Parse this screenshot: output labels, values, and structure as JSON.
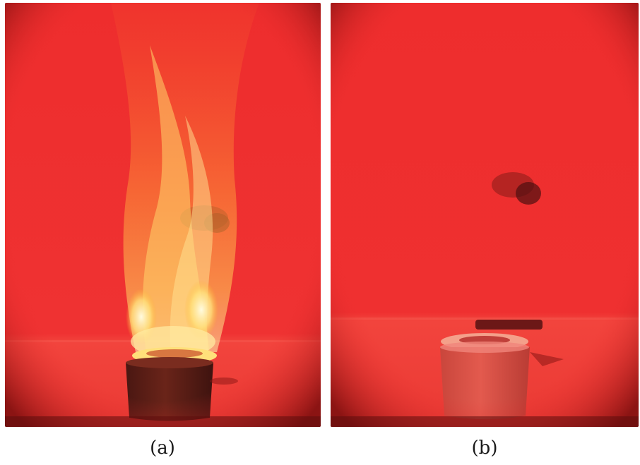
{
  "figure": {
    "panels": [
      {
        "id": "a",
        "caption": "(a)",
        "depicts": "burning-crucible-with-tall-flame"
      },
      {
        "id": "b",
        "caption": "(b)",
        "depicts": "extinguished-crucible-with-residue"
      }
    ]
  },
  "colors": {
    "background_red": "#ee2e2e",
    "floor_red": "#f2443d",
    "vignette": "#7a0d0d",
    "flame_core": "#fff3b0",
    "flame_mid": "#ffb52e",
    "flame_outer": "#ff7a2a",
    "crucible_dark": "#5a1d17",
    "crucible_light": "#e35a4e"
  }
}
